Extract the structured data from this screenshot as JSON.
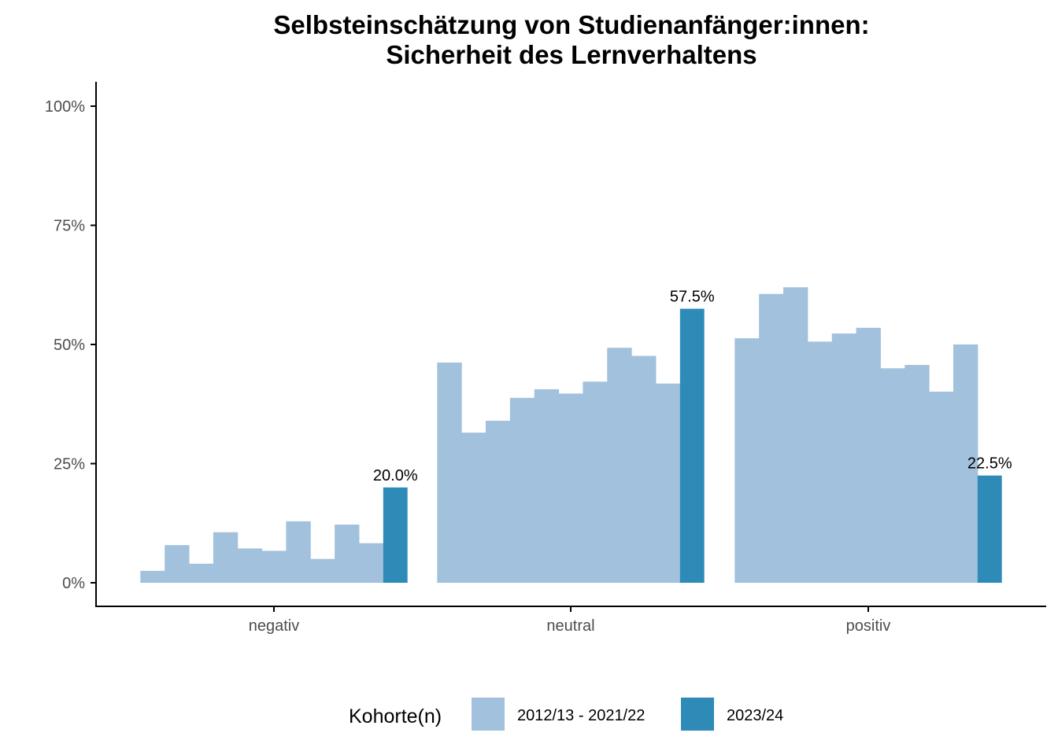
{
  "chart_data": {
    "type": "bar",
    "title": "Selbsteinschätzung von Studienanfänger:innen:",
    "subtitle": "Sicherheit des Lernverhaltens",
    "xlabel": "",
    "ylabel": "",
    "ylim": [
      0,
      1
    ],
    "y_ticks": [
      "0%",
      "25%",
      "50%",
      "75%",
      "100%"
    ],
    "y_tick_values": [
      0,
      0.25,
      0.5,
      0.75,
      1.0
    ],
    "grid": false,
    "legend_position": "bottom",
    "categories": [
      "negativ",
      "neutral",
      "positiv"
    ],
    "legend": {
      "title": "Kohorte(n)",
      "entries": [
        {
          "label": "2012/13 - 2021/22",
          "color": "#a1c1dc"
        },
        {
          "label": "2023/24",
          "color": "#2e8bb7"
        }
      ]
    },
    "series": [
      {
        "cohort": "2012/13 - 2021/22",
        "color": "#a1c1dc",
        "values_by_category": [
          [
            0.025,
            0.079,
            0.04,
            0.106,
            0.072,
            0.067,
            0.129,
            0.05,
            0.122,
            0.083
          ],
          [
            0.462,
            0.315,
            0.34,
            0.388,
            0.406,
            0.397,
            0.422,
            0.493,
            0.476,
            0.418
          ],
          [
            0.513,
            0.606,
            0.62,
            0.506,
            0.523,
            0.535,
            0.45,
            0.457,
            0.401,
            0.5
          ]
        ]
      },
      {
        "cohort": "2023/24",
        "color": "#2e8bb7",
        "values": [
          0.2,
          0.575,
          0.225
        ],
        "labels": [
          "20.0%",
          "57.5%",
          "22.5%"
        ]
      }
    ]
  }
}
